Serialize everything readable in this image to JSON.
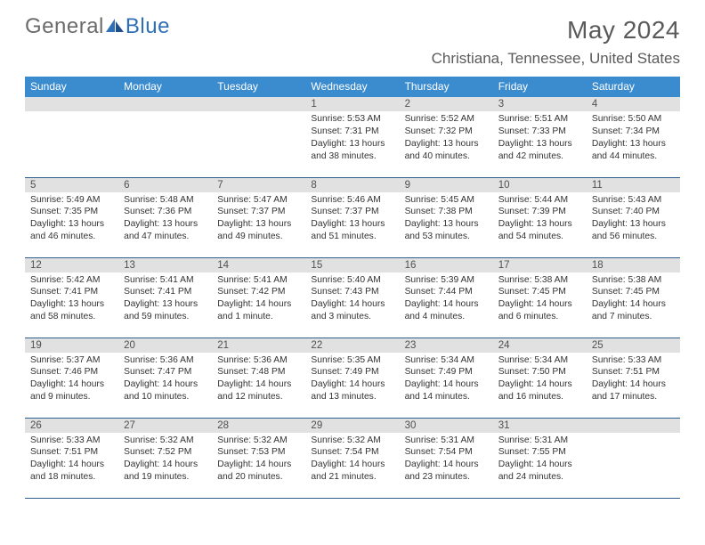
{
  "brand": {
    "part1": "General",
    "part2": "Blue"
  },
  "title": {
    "month_year": "May 2024",
    "location": "Christiana, Tennessee, United States"
  },
  "colors": {
    "header_bg": "#3b8bcf",
    "header_text": "#ffffff",
    "daynum_bg": "#e1e1e1",
    "border": "#2f5e8f",
    "logo_gray": "#6b6b6b",
    "logo_blue": "#2f6fb5"
  },
  "day_names": [
    "Sunday",
    "Monday",
    "Tuesday",
    "Wednesday",
    "Thursday",
    "Friday",
    "Saturday"
  ],
  "weeks": [
    [
      null,
      null,
      null,
      {
        "n": "1",
        "sr": "Sunrise: 5:53 AM",
        "ss": "Sunset: 7:31 PM",
        "dl": "Daylight: 13 hours and 38 minutes."
      },
      {
        "n": "2",
        "sr": "Sunrise: 5:52 AM",
        "ss": "Sunset: 7:32 PM",
        "dl": "Daylight: 13 hours and 40 minutes."
      },
      {
        "n": "3",
        "sr": "Sunrise: 5:51 AM",
        "ss": "Sunset: 7:33 PM",
        "dl": "Daylight: 13 hours and 42 minutes."
      },
      {
        "n": "4",
        "sr": "Sunrise: 5:50 AM",
        "ss": "Sunset: 7:34 PM",
        "dl": "Daylight: 13 hours and 44 minutes."
      }
    ],
    [
      {
        "n": "5",
        "sr": "Sunrise: 5:49 AM",
        "ss": "Sunset: 7:35 PM",
        "dl": "Daylight: 13 hours and 46 minutes."
      },
      {
        "n": "6",
        "sr": "Sunrise: 5:48 AM",
        "ss": "Sunset: 7:36 PM",
        "dl": "Daylight: 13 hours and 47 minutes."
      },
      {
        "n": "7",
        "sr": "Sunrise: 5:47 AM",
        "ss": "Sunset: 7:37 PM",
        "dl": "Daylight: 13 hours and 49 minutes."
      },
      {
        "n": "8",
        "sr": "Sunrise: 5:46 AM",
        "ss": "Sunset: 7:37 PM",
        "dl": "Daylight: 13 hours and 51 minutes."
      },
      {
        "n": "9",
        "sr": "Sunrise: 5:45 AM",
        "ss": "Sunset: 7:38 PM",
        "dl": "Daylight: 13 hours and 53 minutes."
      },
      {
        "n": "10",
        "sr": "Sunrise: 5:44 AM",
        "ss": "Sunset: 7:39 PM",
        "dl": "Daylight: 13 hours and 54 minutes."
      },
      {
        "n": "11",
        "sr": "Sunrise: 5:43 AM",
        "ss": "Sunset: 7:40 PM",
        "dl": "Daylight: 13 hours and 56 minutes."
      }
    ],
    [
      {
        "n": "12",
        "sr": "Sunrise: 5:42 AM",
        "ss": "Sunset: 7:41 PM",
        "dl": "Daylight: 13 hours and 58 minutes."
      },
      {
        "n": "13",
        "sr": "Sunrise: 5:41 AM",
        "ss": "Sunset: 7:41 PM",
        "dl": "Daylight: 13 hours and 59 minutes."
      },
      {
        "n": "14",
        "sr": "Sunrise: 5:41 AM",
        "ss": "Sunset: 7:42 PM",
        "dl": "Daylight: 14 hours and 1 minute."
      },
      {
        "n": "15",
        "sr": "Sunrise: 5:40 AM",
        "ss": "Sunset: 7:43 PM",
        "dl": "Daylight: 14 hours and 3 minutes."
      },
      {
        "n": "16",
        "sr": "Sunrise: 5:39 AM",
        "ss": "Sunset: 7:44 PM",
        "dl": "Daylight: 14 hours and 4 minutes."
      },
      {
        "n": "17",
        "sr": "Sunrise: 5:38 AM",
        "ss": "Sunset: 7:45 PM",
        "dl": "Daylight: 14 hours and 6 minutes."
      },
      {
        "n": "18",
        "sr": "Sunrise: 5:38 AM",
        "ss": "Sunset: 7:45 PM",
        "dl": "Daylight: 14 hours and 7 minutes."
      }
    ],
    [
      {
        "n": "19",
        "sr": "Sunrise: 5:37 AM",
        "ss": "Sunset: 7:46 PM",
        "dl": "Daylight: 14 hours and 9 minutes."
      },
      {
        "n": "20",
        "sr": "Sunrise: 5:36 AM",
        "ss": "Sunset: 7:47 PM",
        "dl": "Daylight: 14 hours and 10 minutes."
      },
      {
        "n": "21",
        "sr": "Sunrise: 5:36 AM",
        "ss": "Sunset: 7:48 PM",
        "dl": "Daylight: 14 hours and 12 minutes."
      },
      {
        "n": "22",
        "sr": "Sunrise: 5:35 AM",
        "ss": "Sunset: 7:49 PM",
        "dl": "Daylight: 14 hours and 13 minutes."
      },
      {
        "n": "23",
        "sr": "Sunrise: 5:34 AM",
        "ss": "Sunset: 7:49 PM",
        "dl": "Daylight: 14 hours and 14 minutes."
      },
      {
        "n": "24",
        "sr": "Sunrise: 5:34 AM",
        "ss": "Sunset: 7:50 PM",
        "dl": "Daylight: 14 hours and 16 minutes."
      },
      {
        "n": "25",
        "sr": "Sunrise: 5:33 AM",
        "ss": "Sunset: 7:51 PM",
        "dl": "Daylight: 14 hours and 17 minutes."
      }
    ],
    [
      {
        "n": "26",
        "sr": "Sunrise: 5:33 AM",
        "ss": "Sunset: 7:51 PM",
        "dl": "Daylight: 14 hours and 18 minutes."
      },
      {
        "n": "27",
        "sr": "Sunrise: 5:32 AM",
        "ss": "Sunset: 7:52 PM",
        "dl": "Daylight: 14 hours and 19 minutes."
      },
      {
        "n": "28",
        "sr": "Sunrise: 5:32 AM",
        "ss": "Sunset: 7:53 PM",
        "dl": "Daylight: 14 hours and 20 minutes."
      },
      {
        "n": "29",
        "sr": "Sunrise: 5:32 AM",
        "ss": "Sunset: 7:54 PM",
        "dl": "Daylight: 14 hours and 21 minutes."
      },
      {
        "n": "30",
        "sr": "Sunrise: 5:31 AM",
        "ss": "Sunset: 7:54 PM",
        "dl": "Daylight: 14 hours and 23 minutes."
      },
      {
        "n": "31",
        "sr": "Sunrise: 5:31 AM",
        "ss": "Sunset: 7:55 PM",
        "dl": "Daylight: 14 hours and 24 minutes."
      },
      null
    ]
  ]
}
